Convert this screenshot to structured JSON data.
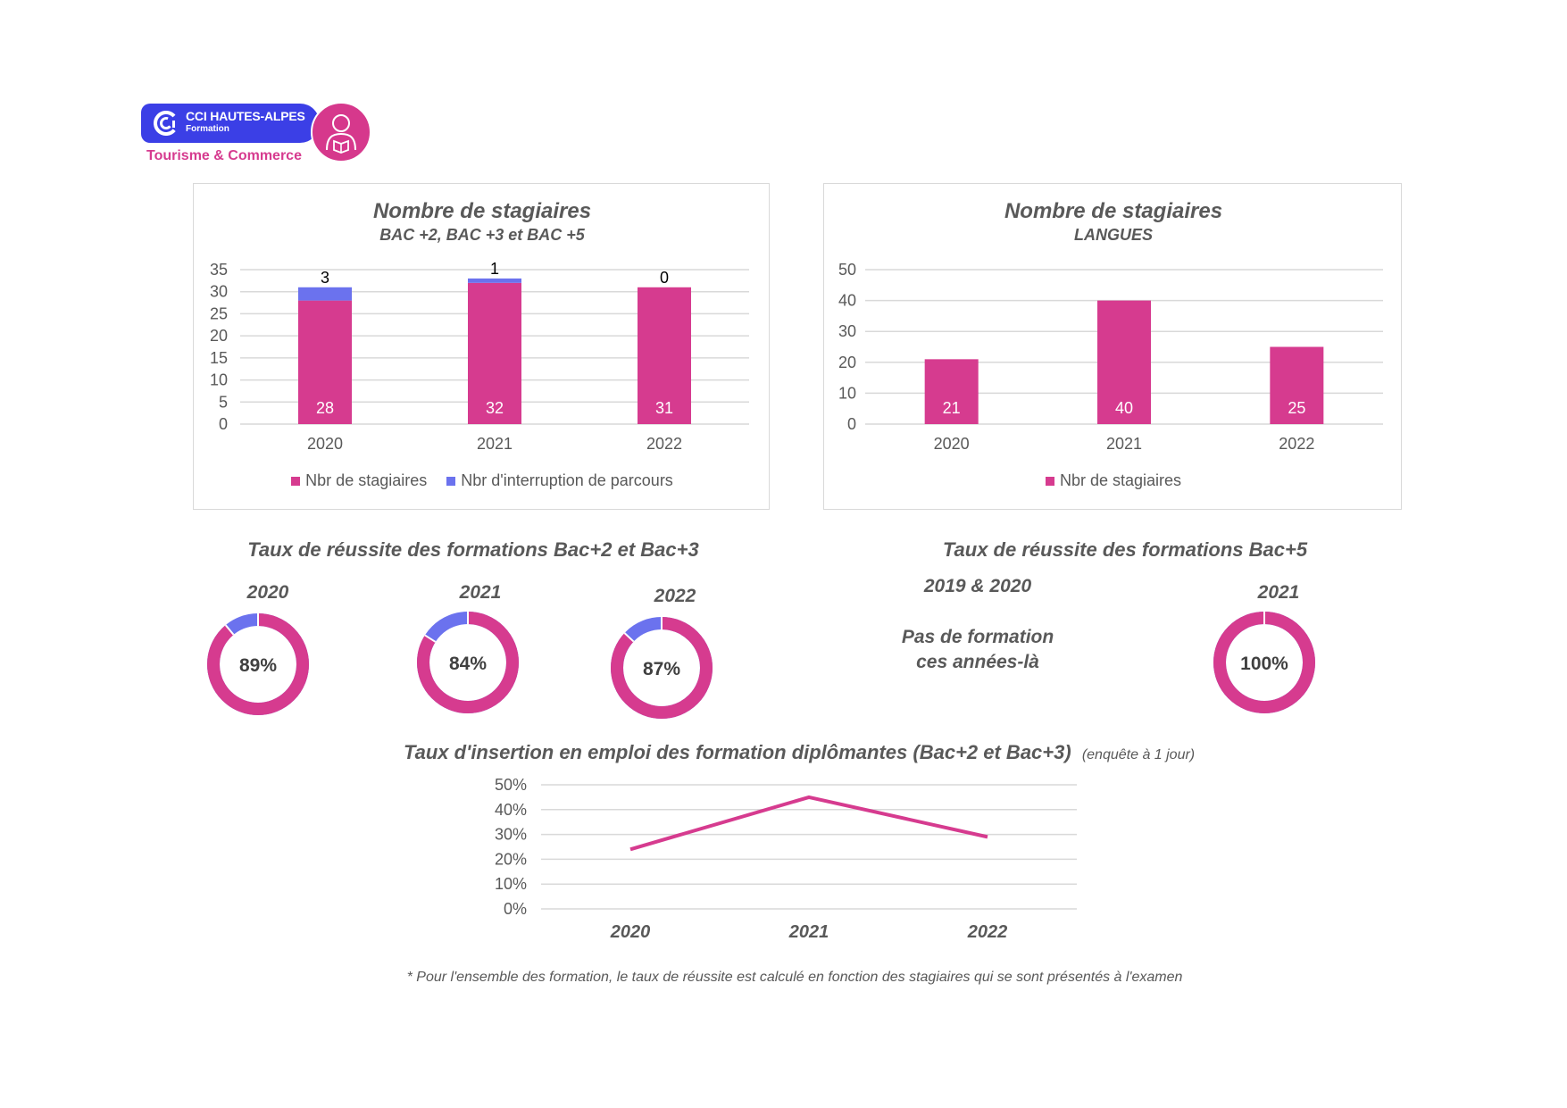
{
  "colors": {
    "pink": "#d63b8f",
    "blue": "#6b72ee",
    "grid": "#d9d9d9",
    "text": "#595959"
  },
  "logo": {
    "name": "CCI HAUTES-ALPES",
    "sub": "Formation",
    "tagline": "Tourisme & Commerce",
    "icon": "person-book-icon"
  },
  "chart_data": [
    {
      "type": "bar",
      "stacked": true,
      "title": "Nombre de stagiaires",
      "subtitle": "BAC +2, BAC +3 et BAC +5",
      "categories": [
        "2020",
        "2021",
        "2022"
      ],
      "series": [
        {
          "name": "Nbr de stagiaires",
          "values": [
            28,
            32,
            31
          ],
          "color": "#d63b8f"
        },
        {
          "name": "Nbr d'interruption de parcours",
          "values": [
            3,
            1,
            0
          ],
          "color": "#6b72ee"
        }
      ],
      "ylim": [
        0,
        35
      ],
      "yticks": [
        0,
        5,
        10,
        15,
        20,
        25,
        30,
        35
      ],
      "grid": true,
      "legend": "bottom"
    },
    {
      "type": "bar",
      "title": "Nombre de stagiaires",
      "subtitle": "LANGUES",
      "categories": [
        "2020",
        "2021",
        "2022"
      ],
      "series": [
        {
          "name": "Nbr de stagiaires",
          "values": [
            21,
            40,
            25
          ],
          "color": "#d63b8f"
        }
      ],
      "ylim": [
        0,
        50
      ],
      "yticks": [
        0,
        10,
        20,
        30,
        40,
        50
      ],
      "grid": true,
      "legend": "bottom"
    },
    {
      "type": "pie",
      "donut": true,
      "title": "Taux de réussite des formations Bac+2 et Bac+3",
      "items": [
        {
          "year": "2020",
          "value": 89,
          "label": "89%"
        },
        {
          "year": "2021",
          "value": 84,
          "label": "84%"
        },
        {
          "year": "2022",
          "value": 87,
          "label": "87%"
        }
      ]
    },
    {
      "type": "pie",
      "donut": true,
      "title": "Taux de réussite des formations Bac+5",
      "note_years": "2019 & 2020",
      "note_line1": "Pas de formation",
      "note_line2": "ces années-là",
      "items": [
        {
          "year": "2021",
          "value": 100,
          "label": "100%"
        }
      ]
    },
    {
      "type": "line",
      "title": "Taux d'insertion en emploi des formation diplômantes (Bac+2 et Bac+3)",
      "title_note": "(enquête à 1 jour)",
      "categories": [
        "2020",
        "2021",
        "2022"
      ],
      "values": [
        24,
        45,
        29
      ],
      "ylim": [
        0,
        50
      ],
      "yticks": [
        "0%",
        "10%",
        "20%",
        "30%",
        "40%",
        "50%"
      ],
      "grid": true
    }
  ],
  "footnote": "* Pour l'ensemble des formation, le taux de réussite est calculé en fonction des stagiaires qui se sont présentés à l'examen"
}
